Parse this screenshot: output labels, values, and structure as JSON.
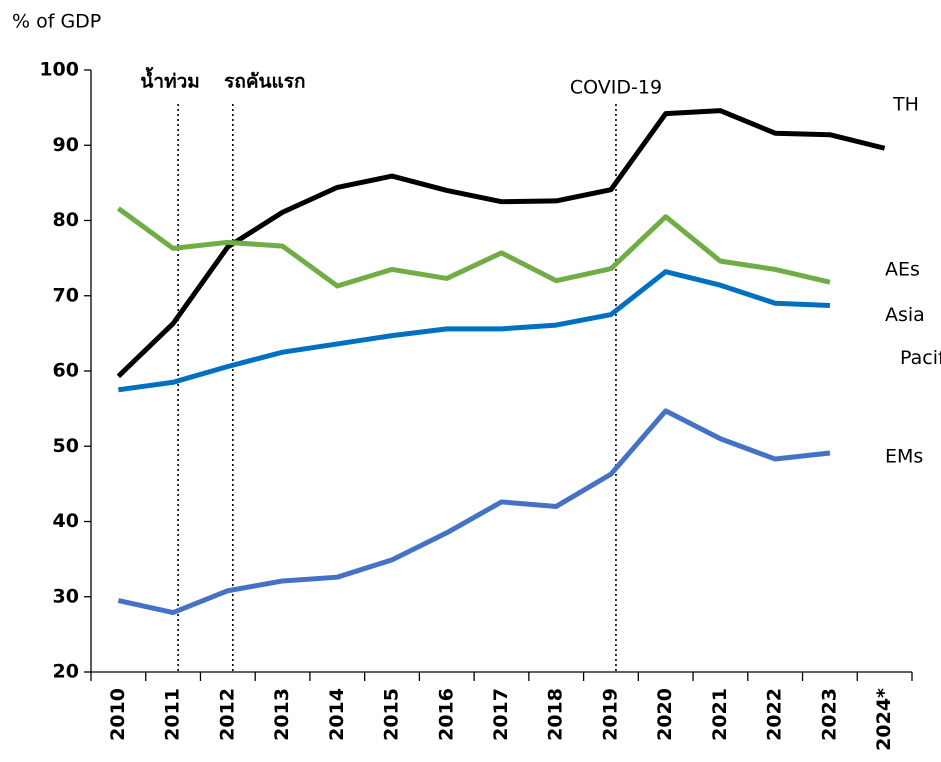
{
  "chart_data": {
    "type": "line",
    "y_axis_label": "% of GDP",
    "categories": [
      "2010",
      "2011",
      "2012",
      "2013",
      "2014",
      "2015",
      "2016",
      "2017",
      "2018",
      "2019",
      "2020",
      "2021",
      "2022",
      "2023",
      "2024*"
    ],
    "series": [
      {
        "name": "TH",
        "color": "#000000",
        "values": [
          59.3,
          66.3,
          76.5,
          81.1,
          84.4,
          85.9,
          84.0,
          82.5,
          82.6,
          84.1,
          94.2,
          94.6,
          91.6,
          91.4,
          89.6
        ]
      },
      {
        "name": "AEs",
        "color": "#70ad47",
        "values": [
          81.6,
          76.3,
          77.1,
          76.6,
          71.3,
          73.5,
          72.3,
          75.7,
          72.0,
          73.6,
          80.5,
          74.6,
          73.5,
          71.8,
          null
        ]
      },
      {
        "name": "Asia Pacific",
        "color": "#0070c0",
        "values": [
          57.5,
          58.5,
          60.6,
          62.5,
          63.6,
          64.7,
          65.6,
          65.6,
          66.1,
          67.5,
          73.2,
          71.4,
          69.0,
          68.7,
          null
        ]
      },
      {
        "name": "EMs",
        "color": "#4472c4",
        "values": [
          29.5,
          27.9,
          30.8,
          32.1,
          32.6,
          34.9,
          38.5,
          42.6,
          42.0,
          46.3,
          54.7,
          51.0,
          48.3,
          49.1,
          null
        ]
      }
    ],
    "ylim": [
      20,
      100
    ],
    "yticks": [
      20,
      30,
      40,
      50,
      60,
      70,
      80,
      90,
      100
    ],
    "annotations": [
      {
        "text": "น้ำท่วม",
        "x": "2011"
      },
      {
        "text": "รถคันแรก",
        "x": "2012"
      },
      {
        "text": "COVID-19",
        "x": "2019"
      }
    ]
  }
}
